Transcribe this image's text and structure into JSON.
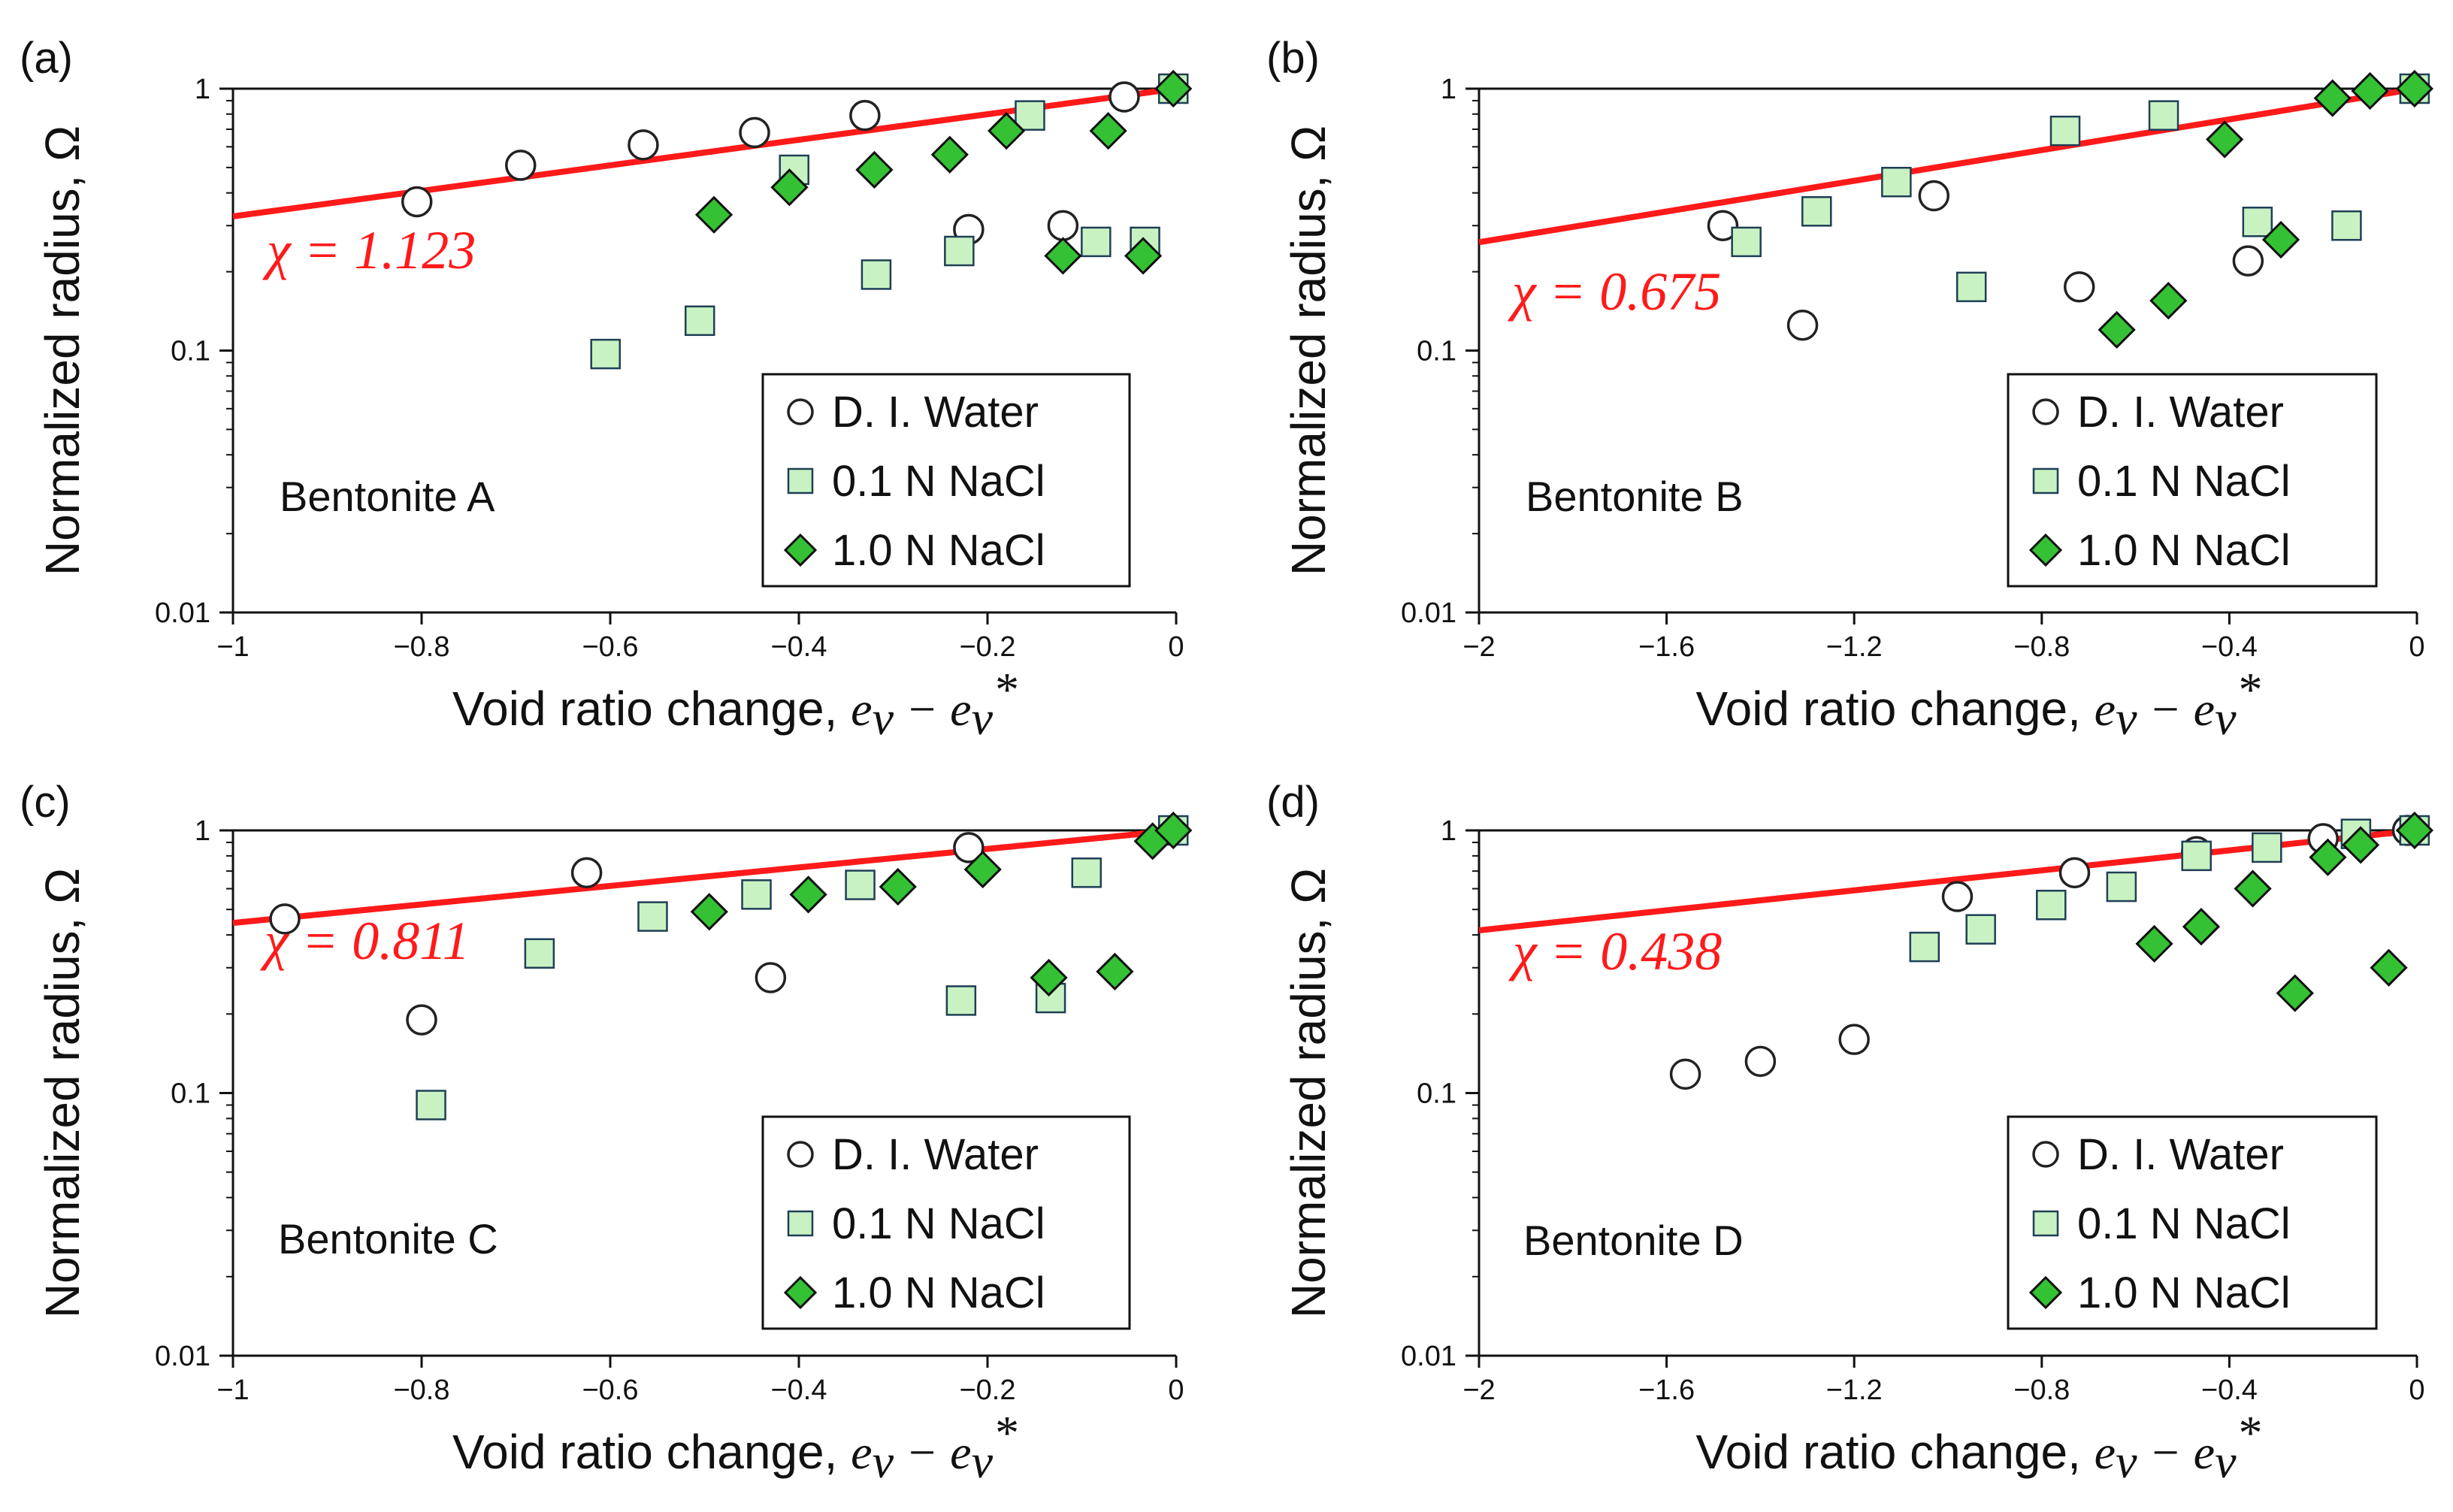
{
  "figure": {
    "palette": {
      "water_fill": "#ffffff",
      "water_stroke": "#222222",
      "nacl01_fill": "#c9f2c2",
      "nacl01_stroke": "#1f3f56",
      "nacl10_fill": "#34c134",
      "nacl10_stroke": "#111111",
      "fit_color": "#ff1a1a",
      "axis_color": "#111111"
    }
  },
  "chart_data": [
    {
      "type": "scatter",
      "panel_label": "(a)",
      "sample_label": "Bentonite  A",
      "fit_label": "χ = 1.123",
      "chi": 1.123,
      "xlabel": "Void ratio change,",
      "xlabel_math": "e",
      "xlabel_sub": "v",
      "xlabel_sub2": "v",
      "xlabel_star": "*",
      "xlabel_minus": "−",
      "ylabel": "Normalized radius, Ω",
      "x_range": [
        -1,
        0
      ],
      "y_range": [
        0.01,
        1
      ],
      "y_scale": "log",
      "x_ticks": [
        -1,
        -0.8,
        -0.6,
        -0.4,
        -0.2,
        0
      ],
      "x_tick_labels": [
        "−1",
        "−0.8",
        "−0.6",
        "−0.4",
        "−0.2",
        "0"
      ],
      "y_ticks": [
        0.01,
        0.1,
        1
      ],
      "y_tick_labels": [
        "0.01",
        "0.1",
        "1"
      ],
      "legend": {
        "position": "bottom-right",
        "entries": [
          "D. I. Water",
          "0.1 N NaCl",
          "1.0 N NaCl"
        ]
      },
      "series": [
        {
          "name": "D. I. Water",
          "marker": "circle",
          "points": [
            [
              -0.805,
              0.37
            ],
            [
              -0.695,
              0.51
            ],
            [
              -0.565,
              0.61
            ],
            [
              -0.447,
              0.68
            ],
            [
              -0.33,
              0.79
            ],
            [
              -0.22,
              0.29
            ],
            [
              -0.12,
              0.3
            ],
            [
              -0.055,
              0.93
            ]
          ]
        },
        {
          "name": "0.1 N NaCl",
          "marker": "square",
          "points": [
            [
              -0.605,
              0.097
            ],
            [
              -0.505,
              0.13
            ],
            [
              -0.405,
              0.49
            ],
            [
              -0.318,
              0.195
            ],
            [
              -0.23,
              0.24
            ],
            [
              -0.155,
              0.79
            ],
            [
              -0.085,
              0.26
            ],
            [
              -0.033,
              0.26
            ],
            [
              -0.003,
              1.0
            ]
          ]
        },
        {
          "name": "1.0 N NaCl",
          "marker": "diamond",
          "points": [
            [
              -0.49,
              0.33
            ],
            [
              -0.41,
              0.42
            ],
            [
              -0.32,
              0.49
            ],
            [
              -0.24,
              0.56
            ],
            [
              -0.18,
              0.69
            ],
            [
              -0.12,
              0.23
            ],
            [
              -0.072,
              0.69
            ],
            [
              -0.035,
              0.23
            ],
            [
              -0.003,
              1.0
            ]
          ]
        }
      ]
    },
    {
      "type": "scatter",
      "panel_label": "(b)",
      "sample_label": "Bentonite  B",
      "fit_label": "χ = 0.675",
      "chi": 0.675,
      "xlabel": "Void ratio change,",
      "xlabel_math": "e",
      "xlabel_sub": "v",
      "xlabel_sub2": "v",
      "xlabel_star": "*",
      "xlabel_minus": "−",
      "ylabel": "Normalized radius, Ω",
      "x_range": [
        -2,
        0
      ],
      "y_range": [
        0.01,
        1
      ],
      "y_scale": "log",
      "x_ticks": [
        -2,
        -1.6,
        -1.2,
        -0.8,
        -0.4,
        0
      ],
      "x_tick_labels": [
        "−2",
        "−1.6",
        "−1.2",
        "−0.8",
        "−0.4",
        "0"
      ],
      "y_ticks": [
        0.01,
        0.1,
        1
      ],
      "y_tick_labels": [
        "0.01",
        "0.1",
        "1"
      ],
      "legend": {
        "position": "bottom-right",
        "entries": [
          "D. I. Water",
          "0.1 N NaCl",
          "1.0 N NaCl"
        ]
      },
      "series": [
        {
          "name": "D. I. Water",
          "marker": "circle",
          "points": [
            [
              -1.48,
              0.3
            ],
            [
              -1.31,
              0.125
            ],
            [
              -1.03,
              0.39
            ],
            [
              -0.72,
              0.175
            ],
            [
              -0.36,
              0.22
            ]
          ]
        },
        {
          "name": "0.1 N NaCl",
          "marker": "square",
          "points": [
            [
              -1.43,
              0.26
            ],
            [
              -1.28,
              0.34
            ],
            [
              -1.11,
              0.44
            ],
            [
              -0.95,
              0.175
            ],
            [
              -0.75,
              0.69
            ],
            [
              -0.54,
              0.79
            ],
            [
              -0.34,
              0.31
            ],
            [
              -0.15,
              0.3
            ],
            [
              -0.005,
              1.0
            ]
          ]
        },
        {
          "name": "1.0 N NaCl",
          "marker": "diamond",
          "points": [
            [
              -0.64,
              0.12
            ],
            [
              -0.53,
              0.155
            ],
            [
              -0.41,
              0.64
            ],
            [
              -0.29,
              0.265
            ],
            [
              -0.18,
              0.92
            ],
            [
              -0.1,
              0.98
            ],
            [
              -0.005,
              1.0
            ]
          ]
        }
      ]
    },
    {
      "type": "scatter",
      "panel_label": "(c)",
      "sample_label": "Bentonite  C",
      "fit_label": "χ = 0.811",
      "chi": 0.811,
      "xlabel": "Void ratio change,",
      "xlabel_math": "e",
      "xlabel_sub": "v",
      "xlabel_sub2": "v",
      "xlabel_star": "*",
      "xlabel_minus": "−",
      "ylabel": "Normalized radius, Ω",
      "x_range": [
        -1,
        0
      ],
      "y_range": [
        0.01,
        1
      ],
      "y_scale": "log",
      "x_ticks": [
        -1,
        -0.8,
        -0.6,
        -0.4,
        -0.2,
        0
      ],
      "x_tick_labels": [
        "−1",
        "−0.8",
        "−0.6",
        "−0.4",
        "−0.2",
        "0"
      ],
      "y_ticks": [
        0.01,
        0.1,
        1
      ],
      "y_tick_labels": [
        "0.01",
        "0.1",
        "1"
      ],
      "legend": {
        "position": "bottom-right",
        "entries": [
          "D. I. Water",
          "0.1 N NaCl",
          "1.0 N NaCl"
        ]
      },
      "series": [
        {
          "name": "D. I. Water",
          "marker": "circle",
          "points": [
            [
              -0.945,
              0.46
            ],
            [
              -0.8,
              0.19
            ],
            [
              -0.625,
              0.69
            ],
            [
              -0.43,
              0.275
            ],
            [
              -0.22,
              0.86
            ]
          ]
        },
        {
          "name": "0.1 N NaCl",
          "marker": "square",
          "points": [
            [
              -0.79,
              0.09
            ],
            [
              -0.675,
              0.34
            ],
            [
              -0.555,
              0.47
            ],
            [
              -0.445,
              0.57
            ],
            [
              -0.335,
              0.62
            ],
            [
              -0.228,
              0.225
            ],
            [
              -0.133,
              0.23
            ],
            [
              -0.095,
              0.69
            ],
            [
              -0.003,
              1.0
            ]
          ]
        },
        {
          "name": "1.0 N NaCl",
          "marker": "diamond",
          "points": [
            [
              -0.495,
              0.49
            ],
            [
              -0.39,
              0.57
            ],
            [
              -0.295,
              0.61
            ],
            [
              -0.205,
              0.71
            ],
            [
              -0.135,
              0.275
            ],
            [
              -0.065,
              0.29
            ],
            [
              -0.025,
              0.91
            ],
            [
              -0.003,
              1.0
            ]
          ]
        }
      ]
    },
    {
      "type": "scatter",
      "panel_label": "(d)",
      "sample_label": "Bentonite  D",
      "fit_label": "χ = 0.438",
      "chi": 0.438,
      "xlabel": "Void ratio change,",
      "xlabel_math": "e",
      "xlabel_sub": "v",
      "xlabel_sub2": "v",
      "xlabel_star": "*",
      "xlabel_minus": "−",
      "ylabel": "Normalized radius, Ω",
      "x_range": [
        -2,
        0
      ],
      "y_range": [
        0.01,
        1
      ],
      "y_scale": "log",
      "x_ticks": [
        -2,
        -1.6,
        -1.2,
        -0.8,
        -0.4,
        0
      ],
      "x_tick_labels": [
        "−2",
        "−1.6",
        "−1.2",
        "−0.8",
        "−0.4",
        "0"
      ],
      "y_ticks": [
        0.01,
        0.1,
        1
      ],
      "y_tick_labels": [
        "0.01",
        "0.1",
        "1"
      ],
      "legend": {
        "position": "bottom-right",
        "entries": [
          "D. I. Water",
          "0.1 N NaCl",
          "1.0 N NaCl"
        ]
      },
      "series": [
        {
          "name": "D. I. Water",
          "marker": "circle",
          "points": [
            [
              -1.56,
              0.118
            ],
            [
              -1.4,
              0.132
            ],
            [
              -1.2,
              0.16
            ],
            [
              -0.98,
              0.56
            ],
            [
              -0.73,
              0.69
            ],
            [
              -0.47,
              0.83
            ],
            [
              -0.2,
              0.93
            ],
            [
              -0.02,
              1.0
            ]
          ]
        },
        {
          "name": "0.1 N NaCl",
          "marker": "square",
          "points": [
            [
              -1.05,
              0.36
            ],
            [
              -0.93,
              0.42
            ],
            [
              -0.78,
              0.52
            ],
            [
              -0.63,
              0.61
            ],
            [
              -0.47,
              0.8
            ],
            [
              -0.32,
              0.86
            ],
            [
              -0.13,
              0.97
            ],
            [
              -0.005,
              1.0
            ]
          ]
        },
        {
          "name": "1.0 N NaCl",
          "marker": "diamond",
          "points": [
            [
              -0.56,
              0.37
            ],
            [
              -0.46,
              0.43
            ],
            [
              -0.35,
              0.6
            ],
            [
              -0.26,
              0.24
            ],
            [
              -0.19,
              0.79
            ],
            [
              -0.12,
              0.88
            ],
            [
              -0.06,
              0.3
            ],
            [
              -0.005,
              1.0
            ]
          ]
        }
      ]
    }
  ]
}
